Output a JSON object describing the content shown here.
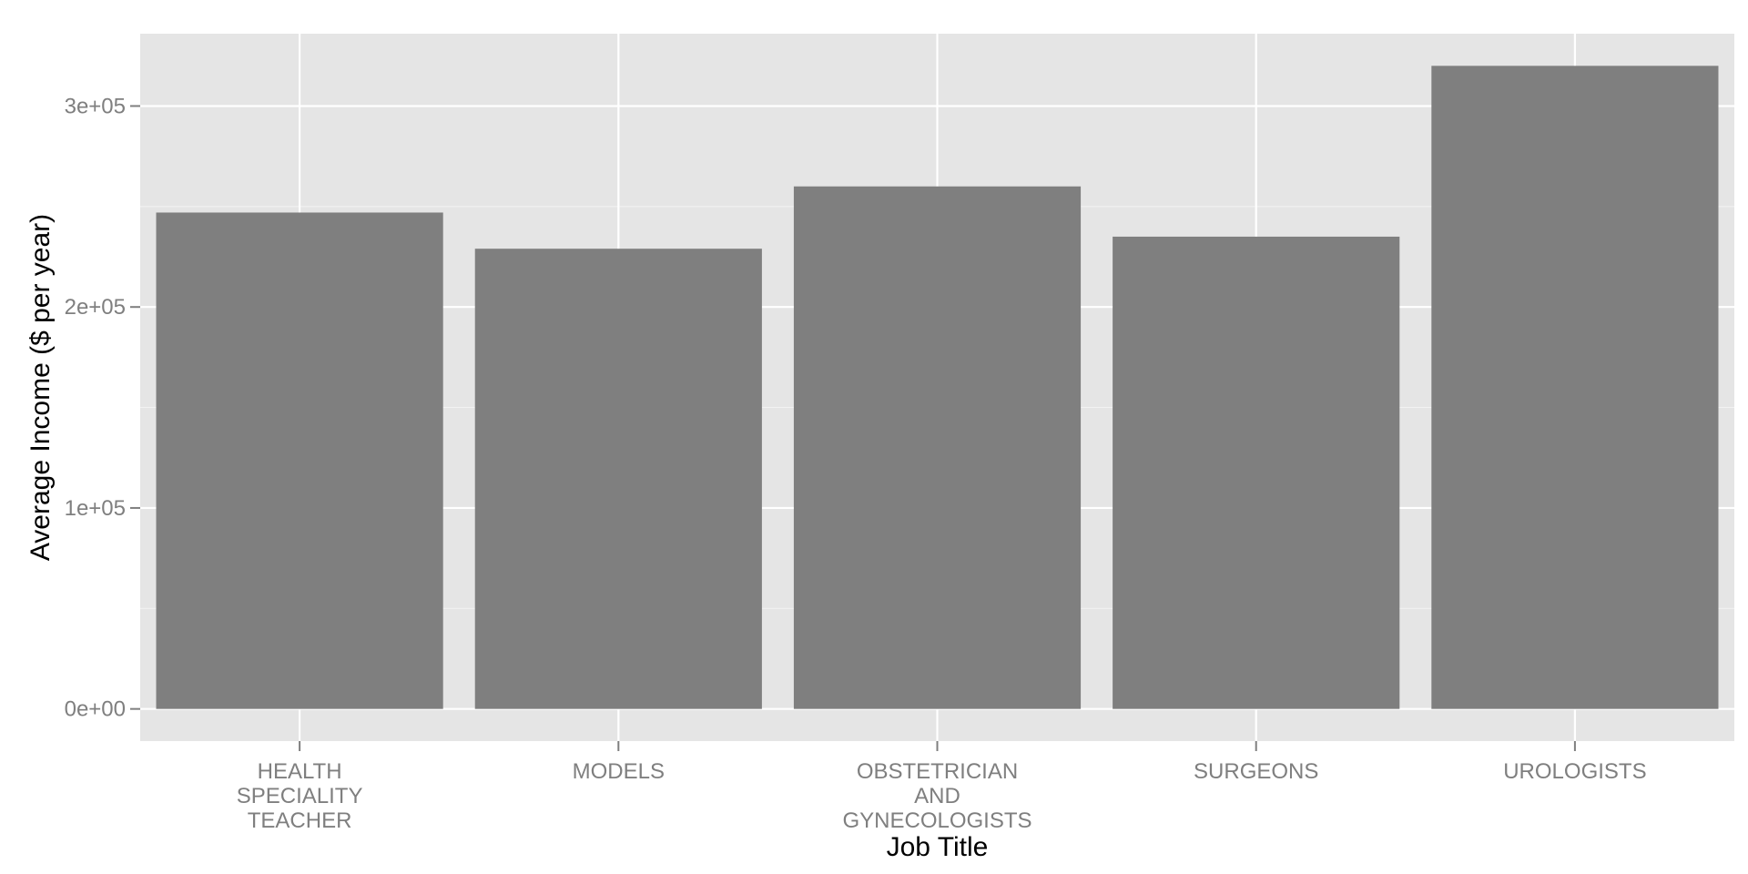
{
  "chart_data": {
    "type": "bar",
    "title": "",
    "xlabel": "Job Title",
    "ylabel": "Average Income ($ per year)",
    "categories": [
      "HEALTH SPECIALITY TEACHER",
      "MODELS",
      "OBSTETRICIAN AND GYNECOLOGISTS",
      "SURGEONS",
      "UROLOGISTS"
    ],
    "category_label_lines": [
      [
        "HEALTH",
        "SPECIALITY",
        "TEACHER"
      ],
      [
        "MODELS"
      ],
      [
        "OBSTETRICIAN",
        "AND",
        "GYNECOLOGISTS"
      ],
      [
        "SURGEONS"
      ],
      [
        "UROLOGISTS"
      ]
    ],
    "values": [
      247000,
      229000,
      260000,
      235000,
      320000
    ],
    "ylim": [
      -16000,
      336000
    ],
    "y_ticks": [
      0,
      100000,
      200000,
      300000
    ],
    "y_tick_labels": [
      "0e+00",
      "1e+05",
      "2e+05",
      "3e+05"
    ],
    "grid": true,
    "legend": "none",
    "colors": {
      "panel_background": "#e5e5e5",
      "grid_major": "#ffffff",
      "grid_minor": "#f2f2f2",
      "bar_fill": "#7f7f7f",
      "tick_text": "#7f7f7f",
      "tick_mark": "#7f7f7f",
      "axis_title": "#000000"
    }
  }
}
